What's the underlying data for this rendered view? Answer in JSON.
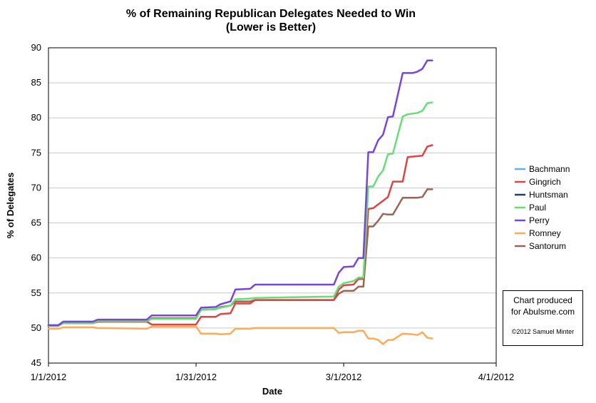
{
  "chart_data": {
    "type": "line",
    "title": "% of Remaining Republican Delegates Needed to Win",
    "subtitle": "(Lower is Better)",
    "xlabel": "Date",
    "ylabel": "% of Delegates",
    "ylim": [
      45,
      90
    ],
    "yticks": [
      45,
      50,
      55,
      60,
      65,
      70,
      75,
      80,
      85,
      90
    ],
    "xticks": [
      "1/1/2012",
      "1/31/2012",
      "3/1/2012",
      "4/1/2012"
    ],
    "xlim": [
      "2012-01-01",
      "2012-04-01"
    ],
    "grid": "horizontal",
    "legend_position": "right",
    "series": [
      {
        "name": "Bachmann",
        "color": "#66aaff",
        "points": []
      },
      {
        "name": "Gingrich",
        "color": "#dd4444",
        "points": [
          [
            "2012-01-01",
            50.3
          ],
          [
            "2012-01-03",
            50.3
          ],
          [
            "2012-01-04",
            50.7
          ],
          [
            "2012-01-10",
            50.7
          ],
          [
            "2012-01-11",
            50.9
          ],
          [
            "2012-01-21",
            50.9
          ],
          [
            "2012-01-22",
            50.5
          ],
          [
            "2012-01-31",
            50.5
          ],
          [
            "2012-02-01",
            51.6
          ],
          [
            "2012-02-04",
            51.6
          ],
          [
            "2012-02-05",
            52.0
          ],
          [
            "2012-02-07",
            52.1
          ],
          [
            "2012-02-08",
            53.5
          ],
          [
            "2012-02-11",
            53.5
          ],
          [
            "2012-02-12",
            54.0
          ],
          [
            "2012-02-28",
            54.0
          ],
          [
            "2012-02-29",
            55.5
          ],
          [
            "2012-03-01",
            56.1
          ],
          [
            "2012-03-03",
            56.2
          ],
          [
            "2012-03-04",
            57.0
          ],
          [
            "2012-03-05",
            57.0
          ],
          [
            "2012-03-06",
            67.0
          ],
          [
            "2012-03-07",
            67.1
          ],
          [
            "2012-03-10",
            68.7
          ],
          [
            "2012-03-11",
            70.9
          ],
          [
            "2012-03-13",
            70.9
          ],
          [
            "2012-03-14",
            74.4
          ],
          [
            "2012-03-17",
            74.6
          ],
          [
            "2012-03-18",
            75.9
          ],
          [
            "2012-03-19",
            76.1
          ]
        ]
      },
      {
        "name": "Huntsman",
        "color": "#1f3f6f",
        "points": [
          [
            "2012-01-01",
            50.4
          ],
          [
            "2012-01-03",
            50.4
          ],
          [
            "2012-01-04",
            50.9
          ],
          [
            "2012-01-10",
            50.9
          ]
        ]
      },
      {
        "name": "Paul",
        "color": "#66dd77",
        "points": [
          [
            "2012-01-01",
            50.3
          ],
          [
            "2012-01-03",
            50.3
          ],
          [
            "2012-01-04",
            50.7
          ],
          [
            "2012-01-10",
            50.7
          ],
          [
            "2012-01-11",
            51.0
          ],
          [
            "2012-01-21",
            51.0
          ],
          [
            "2012-01-22",
            51.3
          ],
          [
            "2012-01-31",
            51.3
          ],
          [
            "2012-02-01",
            52.6
          ],
          [
            "2012-02-04",
            52.7
          ],
          [
            "2012-02-05",
            52.9
          ],
          [
            "2012-02-07",
            53.2
          ],
          [
            "2012-02-08",
            54.1
          ],
          [
            "2012-02-11",
            54.2
          ],
          [
            "2012-02-12",
            54.3
          ],
          [
            "2012-02-28",
            54.5
          ],
          [
            "2012-02-29",
            55.9
          ],
          [
            "2012-03-01",
            56.4
          ],
          [
            "2012-03-03",
            56.7
          ],
          [
            "2012-03-04",
            57.2
          ],
          [
            "2012-03-05",
            57.2
          ],
          [
            "2012-03-06",
            70.2
          ],
          [
            "2012-03-07",
            70.2
          ],
          [
            "2012-03-08",
            71.6
          ],
          [
            "2012-03-09",
            72.5
          ],
          [
            "2012-03-10",
            74.8
          ],
          [
            "2012-03-11",
            74.9
          ],
          [
            "2012-03-13",
            80.2
          ],
          [
            "2012-03-14",
            80.5
          ],
          [
            "2012-03-16",
            80.7
          ],
          [
            "2012-03-17",
            81.0
          ],
          [
            "2012-03-18",
            82.1
          ],
          [
            "2012-03-19",
            82.2
          ]
        ]
      },
      {
        "name": "Perry",
        "color": "#7744dd",
        "points": [
          [
            "2012-01-01",
            50.4
          ],
          [
            "2012-01-03",
            50.4
          ],
          [
            "2012-01-04",
            50.9
          ],
          [
            "2012-01-10",
            50.9
          ],
          [
            "2012-01-11",
            51.2
          ],
          [
            "2012-01-21",
            51.2
          ],
          [
            "2012-01-22",
            51.8
          ],
          [
            "2012-01-31",
            51.8
          ],
          [
            "2012-02-01",
            52.9
          ],
          [
            "2012-02-04",
            53.0
          ],
          [
            "2012-02-05",
            53.4
          ],
          [
            "2012-02-07",
            53.8
          ],
          [
            "2012-02-08",
            55.5
          ],
          [
            "2012-02-11",
            55.6
          ],
          [
            "2012-02-12",
            56.2
          ],
          [
            "2012-02-28",
            56.2
          ],
          [
            "2012-02-29",
            57.9
          ],
          [
            "2012-03-01",
            58.7
          ],
          [
            "2012-03-03",
            58.8
          ],
          [
            "2012-03-04",
            60.0
          ],
          [
            "2012-03-05",
            60.0
          ],
          [
            "2012-03-06",
            75.1
          ],
          [
            "2012-03-07",
            75.1
          ],
          [
            "2012-03-08",
            76.8
          ],
          [
            "2012-03-09",
            77.6
          ],
          [
            "2012-03-10",
            80.1
          ],
          [
            "2012-03-11",
            80.2
          ],
          [
            "2012-03-13",
            86.4
          ],
          [
            "2012-03-15",
            86.4
          ],
          [
            "2012-03-16",
            86.6
          ],
          [
            "2012-03-17",
            87.0
          ],
          [
            "2012-03-18",
            88.2
          ],
          [
            "2012-03-19",
            88.2
          ]
        ]
      },
      {
        "name": "Romney",
        "color": "#ffaa55",
        "points": [
          [
            "2012-01-01",
            49.9
          ],
          [
            "2012-01-03",
            49.9
          ],
          [
            "2012-01-04",
            50.1
          ],
          [
            "2012-01-10",
            50.1
          ],
          [
            "2012-01-11",
            50.0
          ],
          [
            "2012-01-21",
            49.9
          ],
          [
            "2012-01-22",
            50.2
          ],
          [
            "2012-01-31",
            50.2
          ],
          [
            "2012-02-01",
            49.2
          ],
          [
            "2012-02-04",
            49.2
          ],
          [
            "2012-02-05",
            49.1
          ],
          [
            "2012-02-07",
            49.2
          ],
          [
            "2012-02-08",
            49.9
          ],
          [
            "2012-02-11",
            49.9
          ],
          [
            "2012-02-12",
            50.0
          ],
          [
            "2012-02-28",
            50.0
          ],
          [
            "2012-02-29",
            49.3
          ],
          [
            "2012-03-01",
            49.4
          ],
          [
            "2012-03-03",
            49.4
          ],
          [
            "2012-03-04",
            49.6
          ],
          [
            "2012-03-05",
            49.6
          ],
          [
            "2012-03-06",
            48.5
          ],
          [
            "2012-03-07",
            48.5
          ],
          [
            "2012-03-08",
            48.3
          ],
          [
            "2012-03-09",
            47.7
          ],
          [
            "2012-03-10",
            48.3
          ],
          [
            "2012-03-11",
            48.3
          ],
          [
            "2012-03-13",
            49.2
          ],
          [
            "2012-03-15",
            49.1
          ],
          [
            "2012-03-16",
            49.0
          ],
          [
            "2012-03-17",
            49.4
          ],
          [
            "2012-03-18",
            48.6
          ],
          [
            "2012-03-19",
            48.5
          ]
        ]
      },
      {
        "name": "Santorum",
        "color": "#996655",
        "points": [
          [
            "2012-01-01",
            50.3
          ],
          [
            "2012-01-03",
            50.3
          ],
          [
            "2012-01-04",
            50.7
          ],
          [
            "2012-01-10",
            50.7
          ],
          [
            "2012-01-11",
            50.9
          ],
          [
            "2012-01-21",
            50.9
          ],
          [
            "2012-01-22",
            51.4
          ],
          [
            "2012-01-31",
            51.4
          ],
          [
            "2012-02-01",
            52.6
          ],
          [
            "2012-02-04",
            52.7
          ],
          [
            "2012-02-05",
            53.0
          ],
          [
            "2012-02-07",
            53.2
          ],
          [
            "2012-02-08",
            53.8
          ],
          [
            "2012-02-11",
            53.8
          ],
          [
            "2012-02-12",
            54.0
          ],
          [
            "2012-02-28",
            54.0
          ],
          [
            "2012-02-29",
            54.9
          ],
          [
            "2012-03-01",
            55.3
          ],
          [
            "2012-03-03",
            55.3
          ],
          [
            "2012-03-04",
            55.9
          ],
          [
            "2012-03-05",
            55.9
          ],
          [
            "2012-03-06",
            64.5
          ],
          [
            "2012-03-07",
            64.5
          ],
          [
            "2012-03-08",
            65.3
          ],
          [
            "2012-03-09",
            66.3
          ],
          [
            "2012-03-10",
            66.2
          ],
          [
            "2012-03-11",
            66.2
          ],
          [
            "2012-03-13",
            68.6
          ],
          [
            "2012-03-15",
            68.6
          ],
          [
            "2012-03-16",
            68.6
          ],
          [
            "2012-03-17",
            68.7
          ],
          [
            "2012-03-18",
            69.8
          ],
          [
            "2012-03-19",
            69.8
          ]
        ]
      }
    ]
  },
  "credit": {
    "line1": "Chart produced",
    "line2": "for Abulsme.com",
    "copyright": "©2012 Samuel Minter"
  }
}
